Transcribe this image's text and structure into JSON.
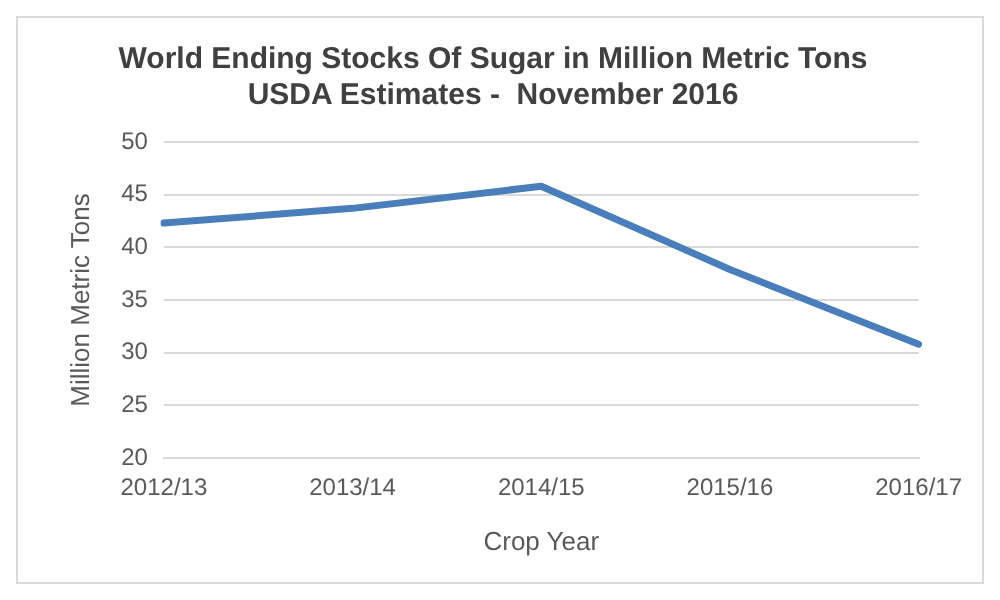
{
  "chart_data": {
    "type": "line",
    "title": "World Ending Stocks Of Sugar in Million Metric Tons\nUSDA Estimates -  November 2016",
    "xlabel": "Crop Year",
    "ylabel": "Million Metric Tons",
    "categories": [
      "2012/13",
      "2013/14",
      "2014/15",
      "2015/16",
      "2016/17"
    ],
    "series": [
      {
        "color": "#4a7ebb",
        "values": [
          42.3,
          43.7,
          45.8,
          37.9,
          30.8
        ]
      }
    ],
    "ylim": [
      20,
      50
    ],
    "yticks": [
      20,
      25,
      30,
      35,
      40,
      45,
      50
    ],
    "grid": "y",
    "legend": false,
    "marker": "none",
    "line_style": "solid"
  }
}
